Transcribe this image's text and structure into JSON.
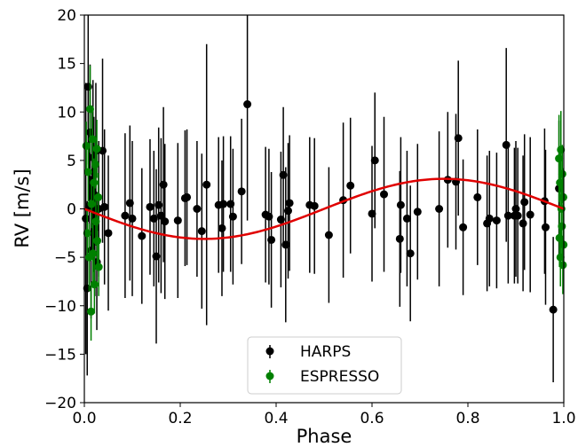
{
  "chart_data": {
    "type": "scatter",
    "xlabel": "Phase",
    "ylabel": "RV [m/s]",
    "xlim": [
      0.0,
      1.0
    ],
    "ylim": [
      -20,
      20
    ],
    "xticks": [
      "0.0",
      "0.2",
      "0.4",
      "0.6",
      "0.8",
      "1.0"
    ],
    "yticks": [
      "20",
      "15",
      "10",
      "5",
      "0",
      "−5",
      "−10",
      "−15",
      "−20"
    ],
    "grid": false,
    "legend_position": "bottom-center",
    "model": {
      "color": "#e00000",
      "semi_amplitude": 3.1,
      "points": [
        [
          0.0,
          0.0
        ],
        [
          0.05,
          -0.96
        ],
        [
          0.1,
          -1.82
        ],
        [
          0.15,
          -2.51
        ],
        [
          0.2,
          -2.95
        ],
        [
          0.25,
          -3.1
        ],
        [
          0.3,
          -2.95
        ],
        [
          0.35,
          -2.51
        ],
        [
          0.4,
          -1.82
        ],
        [
          0.45,
          -0.96
        ],
        [
          0.5,
          0.0
        ],
        [
          0.55,
          0.96
        ],
        [
          0.6,
          1.82
        ],
        [
          0.65,
          2.51
        ],
        [
          0.7,
          2.95
        ],
        [
          0.75,
          3.1
        ],
        [
          0.8,
          2.95
        ],
        [
          0.85,
          2.51
        ],
        [
          0.9,
          1.82
        ],
        [
          0.95,
          0.96
        ],
        [
          1.0,
          0.0
        ]
      ]
    },
    "series": [
      {
        "name": "HARPS",
        "color": "#000000",
        "points": [
          [
            0.003,
            -1.0,
            14.0
          ],
          [
            0.006,
            -8.2,
            9.0
          ],
          [
            0.008,
            12.6,
            8.0
          ],
          [
            0.01,
            0.3,
            8.0
          ],
          [
            0.012,
            7.9,
            7.0
          ],
          [
            0.014,
            -4.3,
            7.0
          ],
          [
            0.016,
            3.0,
            7.0
          ],
          [
            0.018,
            5.3,
            8.0
          ],
          [
            0.02,
            1.5,
            8.0
          ],
          [
            0.022,
            -2.0,
            7.0
          ],
          [
            0.024,
            6.0,
            7.0
          ],
          [
            0.026,
            -5.5,
            7.0
          ],
          [
            0.03,
            0.0,
            7.0
          ],
          [
            0.038,
            6.0,
            9.5
          ],
          [
            0.042,
            0.2,
            8.0
          ],
          [
            0.05,
            -2.5,
            8.0
          ],
          [
            0.085,
            -0.7,
            8.5
          ],
          [
            0.095,
            0.6,
            8.0
          ],
          [
            0.1,
            -1.0,
            8.0
          ],
          [
            0.12,
            -2.8,
            7.0
          ],
          [
            0.137,
            0.2,
            7.0
          ],
          [
            0.145,
            -1.0,
            7.0
          ],
          [
            0.15,
            -4.9,
            9.0
          ],
          [
            0.155,
            0.4,
            8.0
          ],
          [
            0.16,
            -0.7,
            8.0
          ],
          [
            0.165,
            2.5,
            8.0
          ],
          [
            0.168,
            -1.3,
            8.0
          ],
          [
            0.195,
            -1.2,
            8.0
          ],
          [
            0.21,
            1.1,
            7.0
          ],
          [
            0.214,
            1.2,
            7.0
          ],
          [
            0.235,
            0.0,
            7.0
          ],
          [
            0.245,
            -2.3,
            8.0
          ],
          [
            0.255,
            2.5,
            14.5
          ],
          [
            0.28,
            0.4,
            7.0
          ],
          [
            0.287,
            -2.0,
            7.0
          ],
          [
            0.29,
            0.5,
            7.0
          ],
          [
            0.305,
            0.5,
            7.0
          ],
          [
            0.31,
            -0.8,
            7.0
          ],
          [
            0.328,
            1.8,
            7.5
          ],
          [
            0.34,
            10.8,
            12.0
          ],
          [
            0.378,
            -0.6,
            7.0
          ],
          [
            0.385,
            -0.8,
            7.0
          ],
          [
            0.39,
            -3.2,
            7.0
          ],
          [
            0.41,
            -1.1,
            7.0
          ],
          [
            0.415,
            3.5,
            7.0
          ],
          [
            0.42,
            -3.7,
            8.0
          ],
          [
            0.425,
            -0.2,
            7.0
          ],
          [
            0.428,
            0.6,
            7.0
          ],
          [
            0.47,
            0.4,
            7.0
          ],
          [
            0.48,
            0.3,
            7.0
          ],
          [
            0.51,
            -2.7,
            7.0
          ],
          [
            0.54,
            0.9,
            8.0
          ],
          [
            0.555,
            2.4,
            7.0
          ],
          [
            0.6,
            -0.5,
            7.0
          ],
          [
            0.606,
            5.0,
            7.0
          ],
          [
            0.625,
            1.5,
            8.0
          ],
          [
            0.658,
            -3.1,
            7.0
          ],
          [
            0.66,
            0.4,
            7.0
          ],
          [
            0.673,
            -1.0,
            7.0
          ],
          [
            0.68,
            -4.6,
            7.0
          ],
          [
            0.695,
            -0.3,
            7.0
          ],
          [
            0.74,
            0.0,
            8.0
          ],
          [
            0.758,
            3.0,
            7.0
          ],
          [
            0.775,
            2.8,
            7.0
          ],
          [
            0.78,
            7.3,
            8.0
          ],
          [
            0.79,
            -1.9,
            7.0
          ],
          [
            0.82,
            1.2,
            7.0
          ],
          [
            0.84,
            -1.5,
            7.0
          ],
          [
            0.845,
            -1.0,
            7.0
          ],
          [
            0.86,
            -1.2,
            7.0
          ],
          [
            0.88,
            6.6,
            10.0
          ],
          [
            0.884,
            -0.7,
            7.0
          ],
          [
            0.897,
            -0.7,
            7.0
          ],
          [
            0.9,
            0.0,
            7.0
          ],
          [
            0.904,
            -0.7,
            7.0
          ],
          [
            0.915,
            -1.5,
            7.0
          ],
          [
            0.918,
            0.7,
            7.0
          ],
          [
            0.93,
            -0.6,
            8.0
          ],
          [
            0.96,
            0.8,
            7.5
          ],
          [
            0.962,
            -1.9,
            8.0
          ],
          [
            0.978,
            -10.4,
            7.5
          ],
          [
            0.99,
            2.1,
            7.0
          ]
        ]
      },
      {
        "name": "ESPRESSO",
        "color": "#008000",
        "points": [
          [
            0.004,
            6.5,
            2.5
          ],
          [
            0.006,
            -2.5,
            2.5
          ],
          [
            0.008,
            3.8,
            3.0
          ],
          [
            0.01,
            -5.0,
            3.5
          ],
          [
            0.012,
            10.3,
            4.5
          ],
          [
            0.014,
            -10.6,
            3.0
          ],
          [
            0.015,
            0.5,
            2.5
          ],
          [
            0.017,
            7.2,
            3.0
          ],
          [
            0.018,
            -4.6,
            3.0
          ],
          [
            0.02,
            2.7,
            2.5
          ],
          [
            0.021,
            -7.8,
            3.0
          ],
          [
            0.023,
            4.6,
            2.5
          ],
          [
            0.024,
            -1.3,
            2.5
          ],
          [
            0.026,
            6.2,
            3.0
          ],
          [
            0.027,
            -3.3,
            2.5
          ],
          [
            0.029,
            1.2,
            2.5
          ],
          [
            0.03,
            -6.0,
            3.0
          ],
          [
            0.99,
            5.2,
            4.5
          ],
          [
            0.991,
            -3.0,
            3.0
          ],
          [
            0.992,
            2.7,
            3.0
          ],
          [
            0.993,
            -5.0,
            3.0
          ],
          [
            0.994,
            6.1,
            4.0
          ],
          [
            0.995,
            0.0,
            3.0
          ],
          [
            0.996,
            -1.8,
            3.0
          ],
          [
            0.997,
            3.6,
            3.0
          ],
          [
            0.998,
            -5.8,
            3.0
          ],
          [
            0.999,
            1.2,
            3.0
          ],
          [
            0.9995,
            -3.7,
            3.0
          ]
        ]
      }
    ]
  }
}
